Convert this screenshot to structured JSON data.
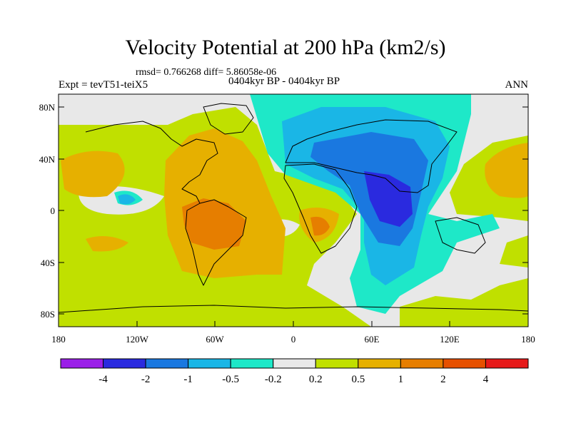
{
  "title": "Velocity Potential at 200 hPa (km2/s)",
  "stats": "rmsd= 0.766268 diff= 5.86058e-06",
  "experiment": "Expt = tevT51-teiX5",
  "period": "0404kyr BP - 0404kyr BP",
  "season": "ANN",
  "lat_ticks": [
    "80N",
    "40N",
    "0",
    "40S",
    "80S"
  ],
  "lon_ticks": [
    "180",
    "120W",
    "60W",
    "0",
    "60E",
    "120E",
    "180"
  ],
  "colorbar": {
    "colors": [
      "#9b1fe8",
      "#2a2adf",
      "#1a78e0",
      "#1ab6e6",
      "#1ee8c8",
      "#e8e8e8",
      "#c0e000",
      "#e6b000",
      "#e67e00",
      "#e65000",
      "#e61a1a"
    ],
    "labels": [
      "-4",
      "-2",
      "-1",
      "-0.5",
      "-0.2",
      "0.2",
      "0.5",
      "1",
      "2",
      "4"
    ]
  }
}
